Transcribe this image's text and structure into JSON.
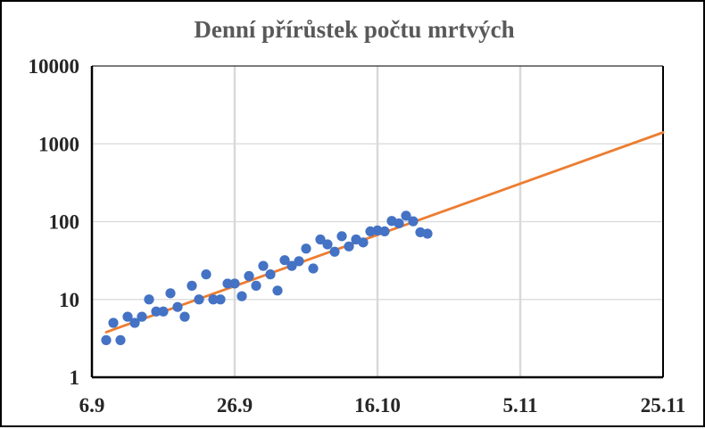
{
  "chart_data": {
    "type": "scatter",
    "title": "Denní přírůstek počtu mrtvých",
    "xlabel": "",
    "ylabel": "",
    "y_scale": "log",
    "ylim": [
      1,
      10000
    ],
    "xlim": [
      "2020-09-06",
      "2020-11-25"
    ],
    "x_ticks": [
      "6.9",
      "26.9",
      "16.10",
      "5.11",
      "25.11"
    ],
    "y_ticks": [
      "1",
      "10",
      "100",
      "1000",
      "10000"
    ],
    "grid": true,
    "legend": "none",
    "colors": {
      "points": "#4472C4",
      "trend": "#ED7D31"
    },
    "series": [
      {
        "kind": "points",
        "x": [
          "2020-09-08",
          "2020-09-09",
          "2020-09-10",
          "2020-09-11",
          "2020-09-12",
          "2020-09-13",
          "2020-09-14",
          "2020-09-15",
          "2020-09-16",
          "2020-09-17",
          "2020-09-18",
          "2020-09-19",
          "2020-09-20",
          "2020-09-21",
          "2020-09-22",
          "2020-09-23",
          "2020-09-24",
          "2020-09-25",
          "2020-09-26",
          "2020-09-27",
          "2020-09-28",
          "2020-09-29",
          "2020-09-30",
          "2020-10-01",
          "2020-10-02",
          "2020-10-03",
          "2020-10-04",
          "2020-10-05",
          "2020-10-06",
          "2020-10-07",
          "2020-10-08",
          "2020-10-09",
          "2020-10-10",
          "2020-10-11",
          "2020-10-12",
          "2020-10-13",
          "2020-10-14",
          "2020-10-15",
          "2020-10-16",
          "2020-10-17",
          "2020-10-18",
          "2020-10-19",
          "2020-10-20",
          "2020-10-21",
          "2020-10-22",
          "2020-10-23"
        ],
        "y": [
          3,
          5,
          3,
          6,
          5,
          6,
          10,
          7,
          7,
          12,
          8,
          6,
          15,
          10,
          21,
          10,
          10,
          16,
          16,
          11,
          20,
          15,
          27,
          21,
          13,
          32,
          27,
          31,
          45,
          25,
          59,
          51,
          41,
          65,
          48,
          59,
          54,
          75,
          77,
          75,
          102,
          95,
          119,
          101,
          73,
          70
        ]
      },
      {
        "kind": "trend",
        "x": [
          "2020-09-08",
          "2020-11-25"
        ],
        "y": [
          3.8,
          1400
        ]
      }
    ]
  }
}
